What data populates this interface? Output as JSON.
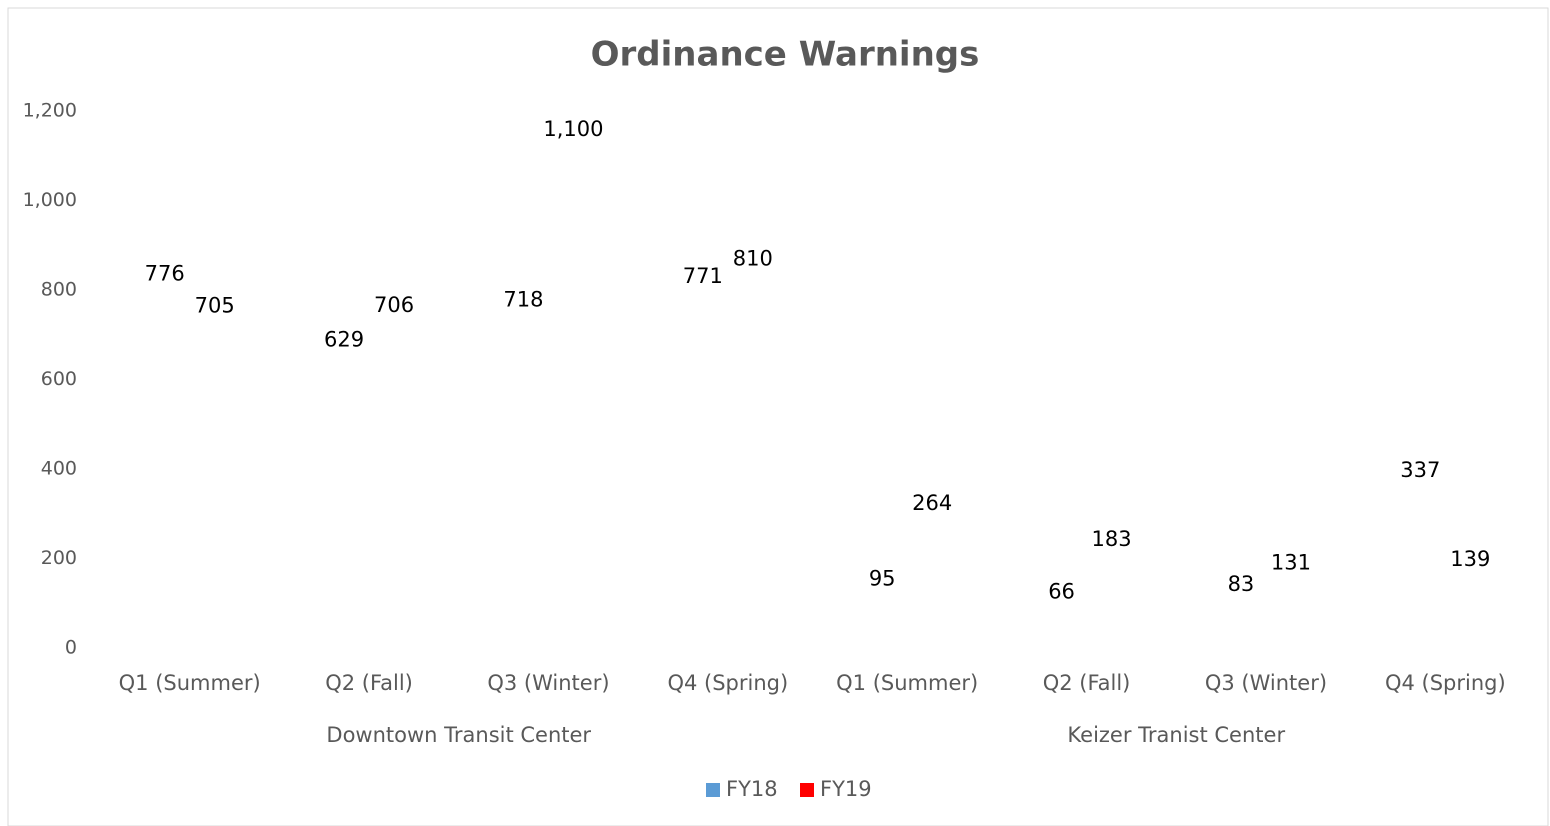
{
  "chart_data": {
    "type": "bar",
    "title": "Ordinance Warnings",
    "categories": [
      "Q1 (Summer)",
      "Q2 (Fall)",
      "Q3 (Winter)",
      "Q4 (Spring)",
      "Q1 (Summer)",
      "Q2 (Fall)",
      "Q3 (Winter)",
      "Q4 (Spring)"
    ],
    "groups": [
      "Downtown Transit Center",
      "Keizer Tranist Center"
    ],
    "series": [
      {
        "name": "FY18",
        "color": "#5b9bd5",
        "values": [
          776,
          629,
          718,
          771,
          95,
          66,
          83,
          337
        ]
      },
      {
        "name": "FY19",
        "color": "#ff0000",
        "values": [
          705,
          706,
          1100,
          810,
          264,
          183,
          131,
          139
        ],
        "value_labels": [
          "705",
          "706",
          "1,100",
          "810",
          "264",
          "183",
          "131",
          "139"
        ]
      }
    ],
    "ylim": [
      0,
      1200
    ],
    "yticks": [
      0,
      200,
      400,
      600,
      800,
      {
        "value": 1000,
        "label": "1,000"
      },
      {
        "value": 1200,
        "label": "1,200"
      }
    ],
    "grid": false,
    "legend": "bottom"
  }
}
